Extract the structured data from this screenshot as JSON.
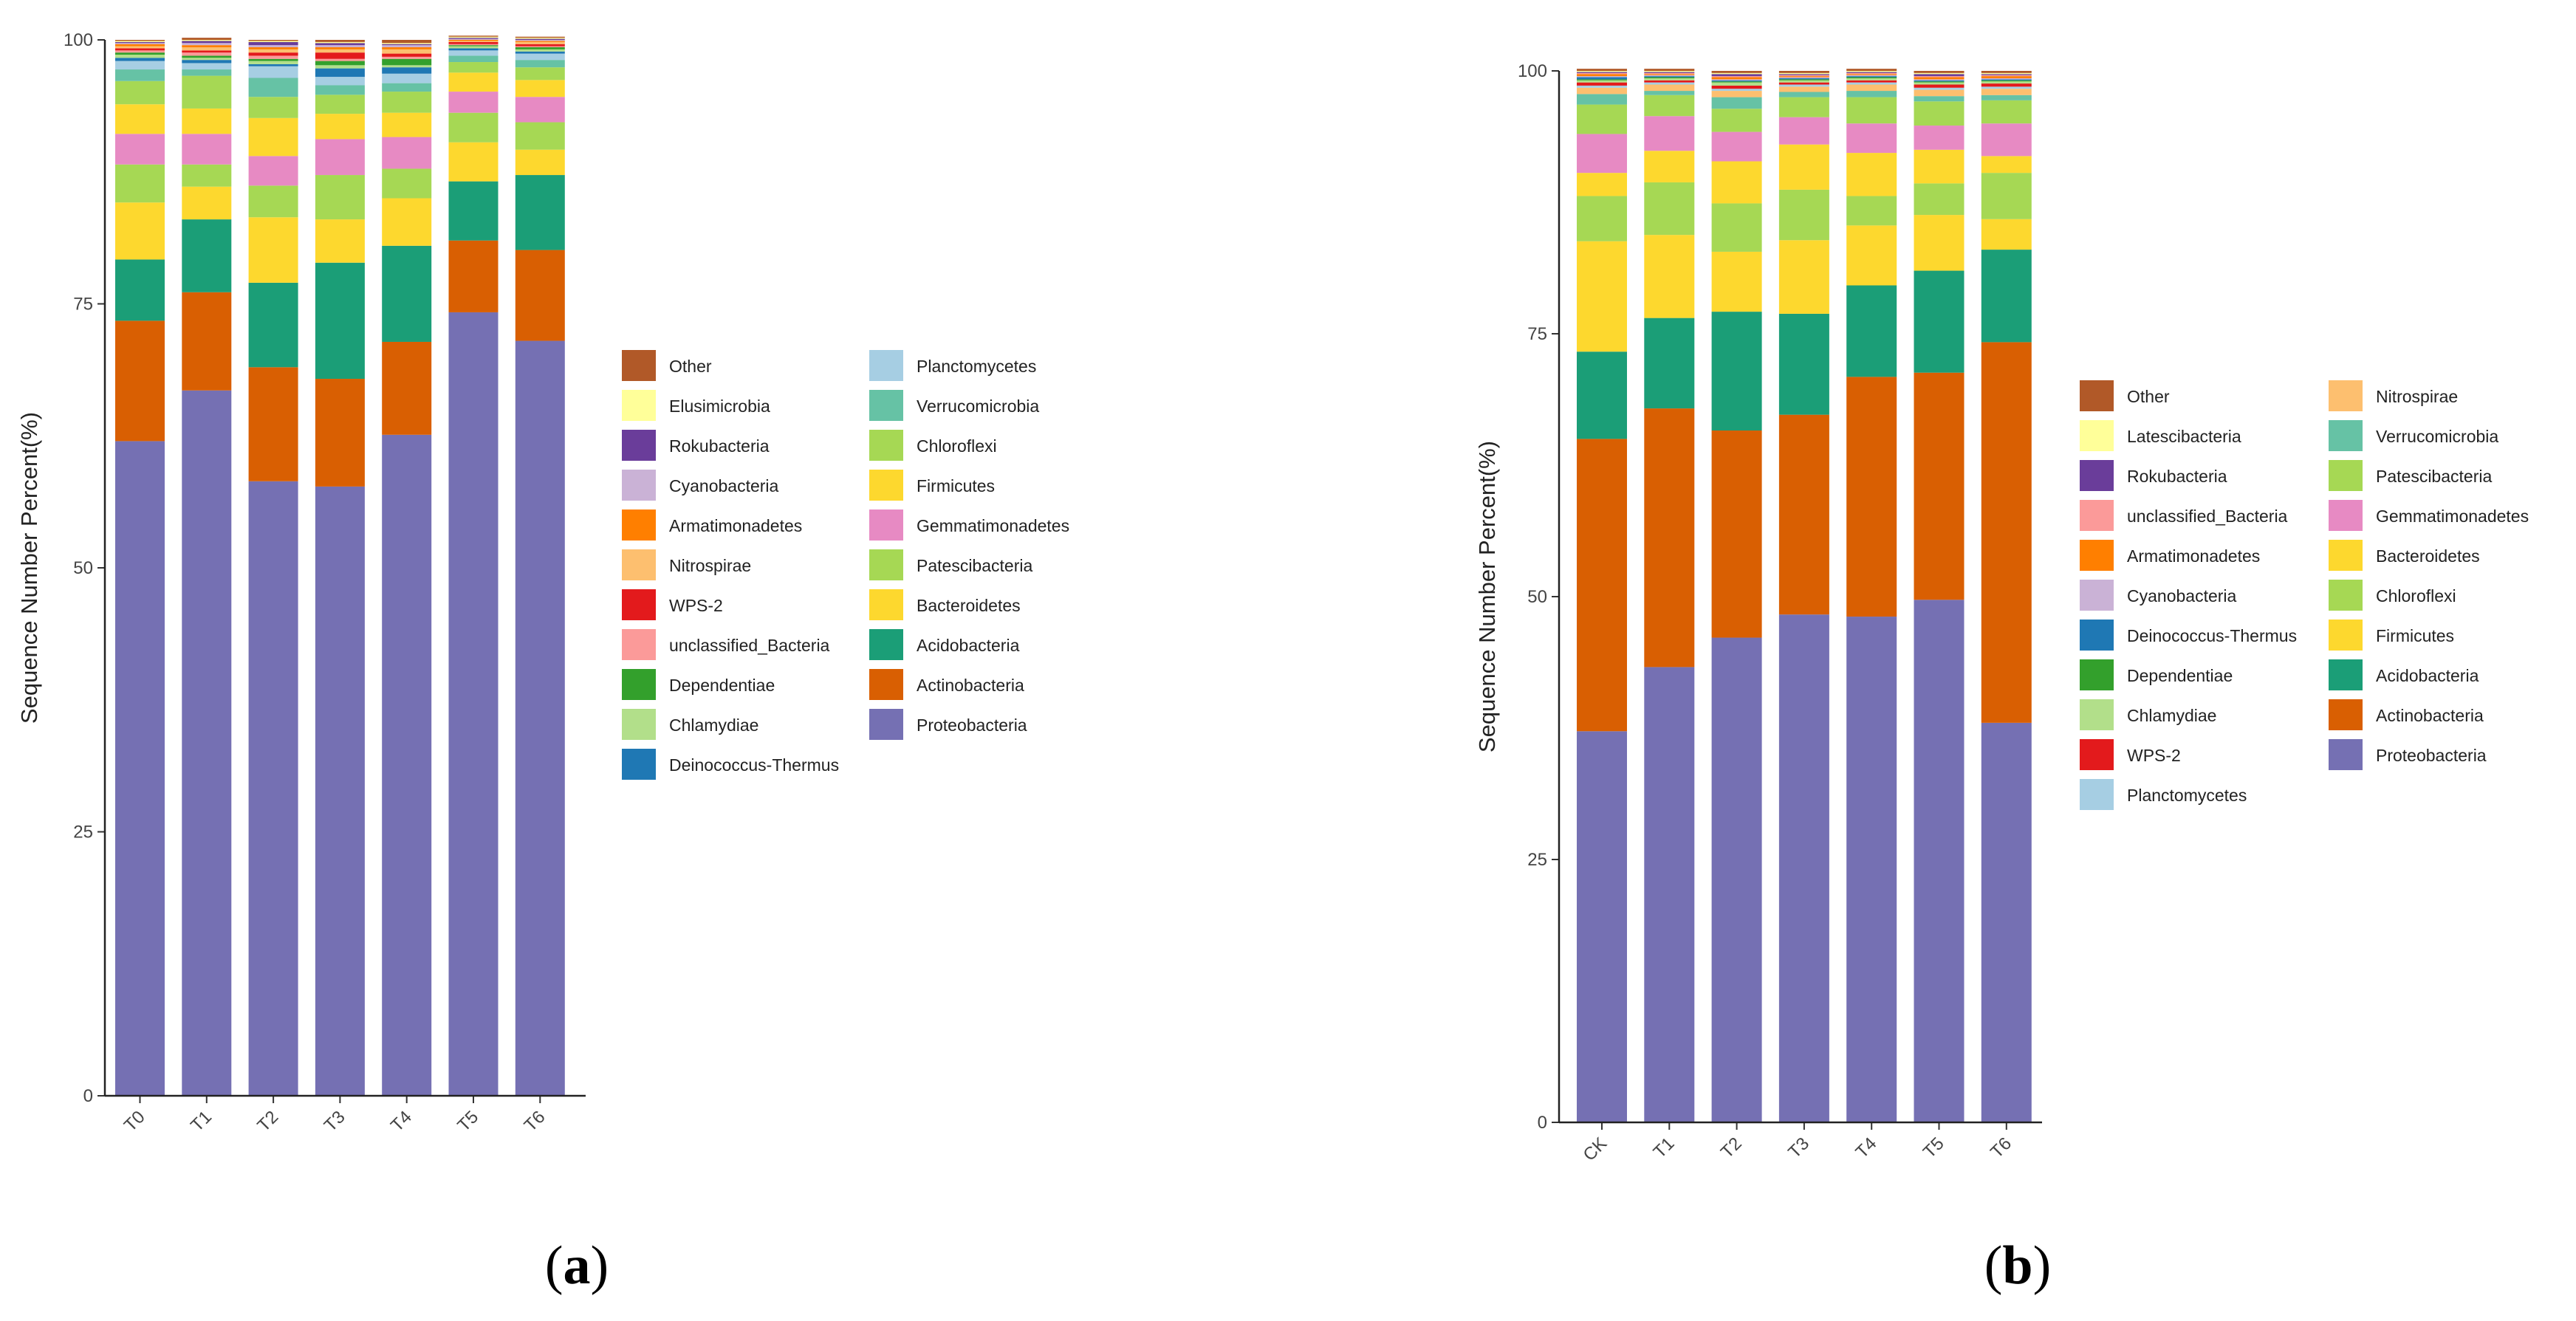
{
  "colors": {
    "Proteobacteria": "#7570B3",
    "Actinobacteria": "#D95F02",
    "Acidobacteria": "#1B9E77",
    "Bacteroidetes": "#FDD82E",
    "Firmicutes": "#FDD82E",
    "Patescibacteria": "#A6D854",
    "Chloroflexi": "#A6D854",
    "Gemmatimonadetes": "#E78AC3",
    "Planctomycetes": "#A6CEE3",
    "Verrucomicrobia": "#66C2A5",
    "Nitrospirae": "#FDBF6F",
    "Deinococcus-Thermus": "#1F78B4",
    "Chlamydiae": "#B2DF8A",
    "Dependentiae": "#33A02C",
    "unclassified_Bacteria": "#FB9A99",
    "WPS-2": "#E31A1C",
    "Armatimonadetes": "#FF7F00",
    "Cyanobacteria": "#CAB2D6",
    "Rokubacteria": "#6A3D9A",
    "Elusimicrobia": "#FFFF99",
    "Latescibacteria": "#FFFF99",
    "Other": "#B15928"
  },
  "chart_data": [
    {
      "type": "bar",
      "stacked": true,
      "panel_label": "a",
      "title": "",
      "xlabel": "",
      "ylabel": "Sequence Number Percent(%)",
      "ylim": [
        0,
        100
      ],
      "yticks": [
        "0",
        "25",
        "50",
        "75",
        "100"
      ],
      "categories": [
        "T0",
        "T1",
        "T2",
        "T3",
        "T4",
        "T5",
        "T6"
      ],
      "legend_position": "right",
      "legend": [
        "Other",
        "Elusimicrobia",
        "Rokubacteria",
        "Cyanobacteria",
        "Armatimonadetes",
        "Nitrospirae",
        "WPS-2",
        "unclassified_Bacteria",
        "Dependentiae",
        "Chlamydiae",
        "Deinococcus-Thermus",
        "Planctomycetes",
        "Verrucomicrobia",
        "Chloroflexi",
        "Firmicutes",
        "Gemmatimonadetes",
        "Patescibacteria",
        "Bacteroidetes",
        "Acidobacteria",
        "Actinobacteria",
        "Proteobacteria"
      ],
      "series": [
        {
          "name": "Proteobacteria",
          "values": [
            62.0,
            66.8,
            58.2,
            57.7,
            62.6,
            74.2,
            71.5
          ]
        },
        {
          "name": "Actinobacteria",
          "values": [
            11.4,
            9.3,
            10.8,
            10.2,
            8.8,
            6.8,
            8.6
          ]
        },
        {
          "name": "Acidobacteria",
          "values": [
            5.8,
            6.9,
            8.0,
            11.0,
            9.1,
            5.6,
            7.1
          ]
        },
        {
          "name": "Bacteroidetes",
          "values": [
            5.4,
            3.1,
            6.2,
            4.1,
            4.5,
            3.7,
            2.4
          ]
        },
        {
          "name": "Patescibacteria",
          "values": [
            3.6,
            2.1,
            3.0,
            4.2,
            2.8,
            2.8,
            2.6
          ]
        },
        {
          "name": "Gemmatimonadetes",
          "values": [
            2.9,
            2.9,
            2.8,
            3.4,
            3.0,
            2.0,
            2.4
          ]
        },
        {
          "name": "Firmicutes",
          "values": [
            2.8,
            2.4,
            3.6,
            2.4,
            2.3,
            1.8,
            1.6
          ]
        },
        {
          "name": "Chloroflexi",
          "values": [
            2.2,
            3.1,
            2.0,
            1.8,
            2.0,
            1.0,
            1.2
          ]
        },
        {
          "name": "Verrucomicrobia",
          "values": [
            1.1,
            0.6,
            1.8,
            0.9,
            0.8,
            0.6,
            0.7
          ]
        },
        {
          "name": "Planctomycetes",
          "values": [
            0.8,
            0.6,
            1.1,
            0.8,
            0.9,
            0.5,
            0.6
          ]
        },
        {
          "name": "Deinococcus-Thermus",
          "values": [
            0.3,
            0.3,
            0.2,
            0.8,
            0.6,
            0.2,
            0.2
          ]
        },
        {
          "name": "Chlamydiae",
          "values": [
            0.3,
            0.2,
            0.3,
            0.3,
            0.2,
            0.2,
            0.2
          ]
        },
        {
          "name": "Dependentiae",
          "values": [
            0.2,
            0.2,
            0.2,
            0.4,
            0.6,
            0.1,
            0.2
          ]
        },
        {
          "name": "unclassified_Bacteria",
          "values": [
            0.2,
            0.3,
            0.3,
            0.2,
            0.2,
            0.1,
            0.1
          ]
        },
        {
          "name": "WPS-2",
          "values": [
            0.2,
            0.2,
            0.3,
            0.6,
            0.3,
            0.2,
            0.2
          ]
        },
        {
          "name": "Nitrospirae",
          "values": [
            0.2,
            0.3,
            0.3,
            0.3,
            0.4,
            0.1,
            0.2
          ]
        },
        {
          "name": "Armatimonadetes",
          "values": [
            0.2,
            0.2,
            0.2,
            0.2,
            0.2,
            0.1,
            0.1
          ]
        },
        {
          "name": "Cyanobacteria",
          "values": [
            0.1,
            0.2,
            0.2,
            0.2,
            0.2,
            0.1,
            0.1
          ]
        },
        {
          "name": "Rokubacteria",
          "values": [
            0.1,
            0.2,
            0.3,
            0.2,
            0.1,
            0.1,
            0.1
          ]
        },
        {
          "name": "Elusimicrobia",
          "values": [
            0.1,
            0.1,
            0.1,
            0.1,
            0.1,
            0.1,
            0.1
          ]
        },
        {
          "name": "Other",
          "values": [
            0.1,
            0.2,
            0.1,
            0.2,
            0.3,
            0.1,
            0.1
          ]
        }
      ]
    },
    {
      "type": "bar",
      "stacked": true,
      "panel_label": "b",
      "title": "",
      "xlabel": "",
      "ylabel": "Sequence Number Percent(%)",
      "ylim": [
        0,
        100
      ],
      "yticks": [
        "0",
        "25",
        "50",
        "75",
        "100"
      ],
      "categories": [
        "CK",
        "T1",
        "T2",
        "T3",
        "T4",
        "T5",
        "T6"
      ],
      "legend_position": "right",
      "legend": [
        "Other",
        "Latescibacteria",
        "Rokubacteria",
        "unclassified_Bacteria",
        "Armatimonadetes",
        "Cyanobacteria",
        "Deinococcus-Thermus",
        "Dependentiae",
        "Chlamydiae",
        "WPS-2",
        "Planctomycetes",
        "Nitrospirae",
        "Verrucomicrobia",
        "Patescibacteria",
        "Gemmatimonadetes",
        "Bacteroidetes",
        "Chloroflexi",
        "Firmicutes",
        "Acidobacteria",
        "Actinobacteria",
        "Proteobacteria"
      ],
      "series": [
        {
          "name": "Proteobacteria",
          "values": [
            37.2,
            43.3,
            46.1,
            48.3,
            48.1,
            49.7,
            38.0
          ]
        },
        {
          "name": "Actinobacteria",
          "values": [
            27.8,
            24.6,
            19.7,
            19.0,
            22.8,
            21.6,
            36.2
          ]
        },
        {
          "name": "Acidobacteria",
          "values": [
            8.3,
            8.6,
            11.3,
            9.6,
            8.7,
            9.7,
            8.8
          ]
        },
        {
          "name": "Firmicutes",
          "values": [
            10.5,
            7.9,
            5.7,
            7.0,
            5.7,
            5.3,
            2.9
          ]
        },
        {
          "name": "Chloroflexi",
          "values": [
            4.3,
            5.0,
            4.6,
            4.8,
            2.8,
            3.0,
            4.4
          ]
        },
        {
          "name": "Bacteroidetes",
          "values": [
            2.2,
            3.0,
            4.0,
            4.3,
            4.1,
            3.2,
            1.6
          ]
        },
        {
          "name": "Gemmatimonadetes",
          "values": [
            3.7,
            3.3,
            2.8,
            2.6,
            2.8,
            2.3,
            3.1
          ]
        },
        {
          "name": "Patescibacteria",
          "values": [
            2.8,
            2.0,
            2.2,
            1.9,
            2.5,
            2.3,
            2.2
          ]
        },
        {
          "name": "Verrucomicrobia",
          "values": [
            1.0,
            0.4,
            1.1,
            0.5,
            0.6,
            0.5,
            0.5
          ]
        },
        {
          "name": "Nitrospirae",
          "values": [
            0.6,
            0.6,
            0.6,
            0.5,
            0.6,
            0.6,
            0.6
          ]
        },
        {
          "name": "Planctomycetes",
          "values": [
            0.2,
            0.2,
            0.2,
            0.2,
            0.2,
            0.2,
            0.2
          ]
        },
        {
          "name": "WPS-2",
          "values": [
            0.3,
            0.2,
            0.3,
            0.2,
            0.2,
            0.3,
            0.3
          ]
        },
        {
          "name": "Chlamydiae",
          "values": [
            0.2,
            0.2,
            0.3,
            0.2,
            0.2,
            0.2,
            0.2
          ]
        },
        {
          "name": "Dependentiae",
          "values": [
            0.1,
            0.1,
            0.1,
            0.1,
            0.1,
            0.1,
            0.1
          ]
        },
        {
          "name": "Deinococcus-Thermus",
          "values": [
            0.2,
            0.1,
            0.1,
            0.1,
            0.1,
            0.1,
            0.1
          ]
        },
        {
          "name": "Cyanobacteria",
          "values": [
            0.1,
            0.1,
            0.1,
            0.1,
            0.1,
            0.1,
            0.1
          ]
        },
        {
          "name": "Armatimonadetes",
          "values": [
            0.2,
            0.1,
            0.2,
            0.1,
            0.1,
            0.2,
            0.2
          ]
        },
        {
          "name": "unclassified_Bacteria",
          "values": [
            0.1,
            0.1,
            0.1,
            0.1,
            0.1,
            0.1,
            0.1
          ]
        },
        {
          "name": "Rokubacteria",
          "values": [
            0.1,
            0.1,
            0.2,
            0.1,
            0.1,
            0.2,
            0.1
          ]
        },
        {
          "name": "Latescibacteria",
          "values": [
            0.1,
            0.1,
            0.1,
            0.1,
            0.1,
            0.1,
            0.1
          ]
        },
        {
          "name": "Other",
          "values": [
            0.2,
            0.2,
            0.2,
            0.2,
            0.2,
            0.2,
            0.2
          ]
        }
      ]
    }
  ]
}
